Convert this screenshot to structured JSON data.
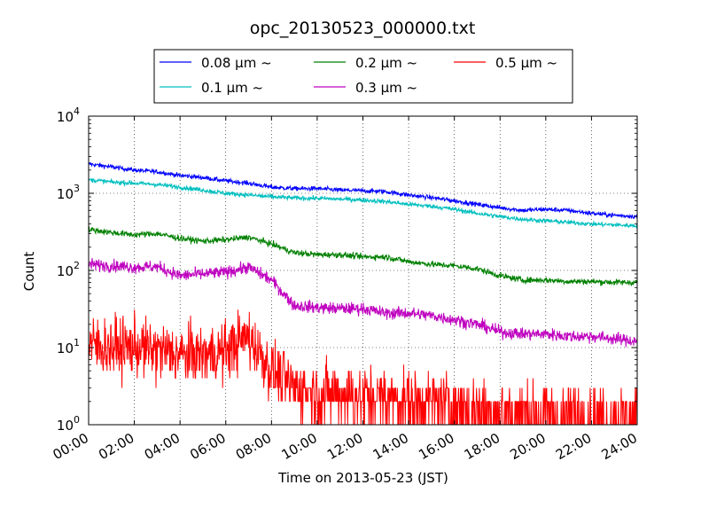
{
  "chart_data": {
    "type": "line",
    "title": "opc_20130523_000000.txt",
    "xlabel": "Time on 2013-05-23 (JST)",
    "ylabel": "Count",
    "yscale": "log",
    "ylim": [
      1,
      10000
    ],
    "xlim": [
      "00:00",
      "24:00"
    ],
    "grid": true,
    "legend_position": "top, above plot",
    "x_tick_labels": [
      "00:00",
      "02:00",
      "04:00",
      "06:00",
      "08:00",
      "10:00",
      "12:00",
      "14:00",
      "16:00",
      "18:00",
      "20:00",
      "22:00",
      "24:00"
    ],
    "y_ticks": [
      {
        "value": 1,
        "base": "10",
        "exp": "0"
      },
      {
        "value": 10,
        "base": "10",
        "exp": "1"
      },
      {
        "value": 100,
        "base": "10",
        "exp": "2"
      },
      {
        "value": 1000,
        "base": "10",
        "exp": "3"
      },
      {
        "value": 10000,
        "base": "10",
        "exp": "4"
      }
    ],
    "x": [
      0,
      1,
      2,
      3,
      4,
      5,
      6,
      7,
      8,
      9,
      10,
      11,
      12,
      13,
      14,
      15,
      16,
      17,
      18,
      19,
      20,
      21,
      22,
      23,
      24
    ],
    "series": [
      {
        "name": "0.08 μm ~",
        "color": "#0000ff",
        "noise": 0.03,
        "values": [
          2400,
          2200,
          2000,
          1900,
          1700,
          1600,
          1450,
          1350,
          1200,
          1150,
          1150,
          1100,
          1080,
          1050,
          950,
          880,
          800,
          720,
          650,
          600,
          620,
          600,
          550,
          520,
          500
        ]
      },
      {
        "name": "0.1 μm ~",
        "color": "#00bfbf",
        "noise": 0.03,
        "values": [
          1500,
          1400,
          1350,
          1300,
          1200,
          1100,
          1000,
          950,
          900,
          870,
          860,
          840,
          820,
          780,
          720,
          680,
          620,
          550,
          500,
          460,
          440,
          420,
          400,
          390,
          380
        ]
      },
      {
        "name": "0.2 μm ~",
        "color": "#008000",
        "noise": 0.04,
        "values": [
          340,
          310,
          290,
          300,
          260,
          240,
          250,
          270,
          220,
          170,
          160,
          160,
          150,
          150,
          130,
          120,
          115,
          105,
          85,
          75,
          75,
          72,
          72,
          70,
          70
        ]
      },
      {
        "name": "0.3 μm ~",
        "color": "#bf00bf",
        "noise": 0.08,
        "values": [
          120,
          115,
          110,
          112,
          85,
          90,
          95,
          110,
          75,
          35,
          33,
          32,
          32,
          28,
          28,
          26,
          23,
          20,
          16,
          15,
          15,
          14,
          14,
          13,
          12
        ]
      },
      {
        "name": "0.5 μm ~",
        "color": "#ff0000",
        "noise": 0.5,
        "values": [
          11,
          10,
          10,
          9,
          8,
          8,
          9,
          14,
          5,
          3,
          2.5,
          2.5,
          2.3,
          2.2,
          2,
          2,
          1.8,
          1.6,
          1.5,
          1.5,
          1.4,
          1.4,
          1.3,
          1.3,
          1.3
        ]
      }
    ]
  }
}
